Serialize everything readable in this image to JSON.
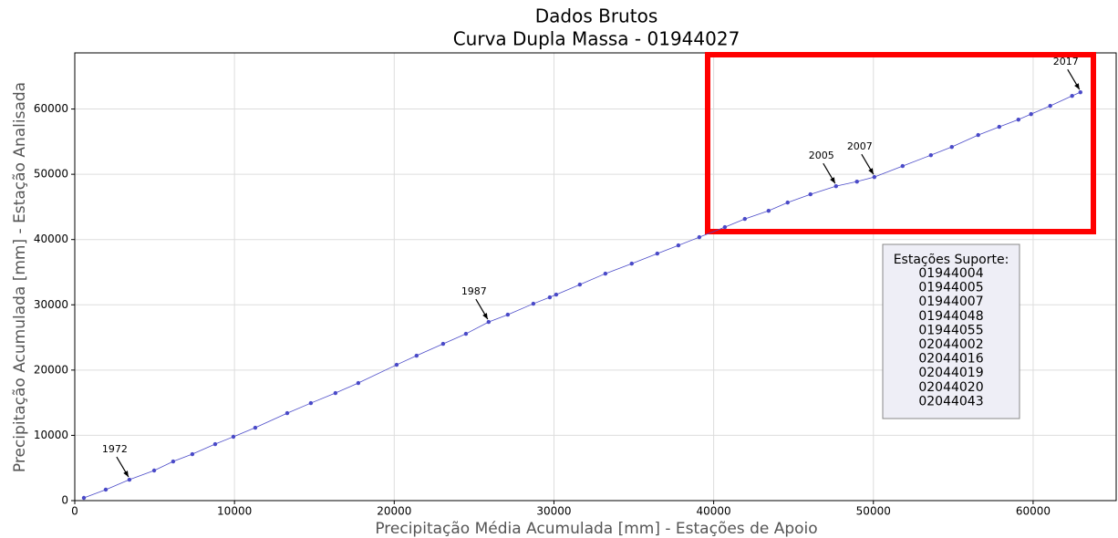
{
  "chart_data": {
    "type": "line",
    "title": "Dados Brutos",
    "subtitle": "Curva Dupla Massa - 01944027",
    "xlabel": "Precipitação Média Acumulada [mm] - Estações de Apoio",
    "ylabel": "Precipitação Acumulada [mm] - Estação Analisada",
    "x": [
      570,
      1940,
      3420,
      4970,
      6160,
      7360,
      8790,
      9930,
      11300,
      13300,
      14780,
      16320,
      17750,
      20150,
      21400,
      23060,
      24490,
      25910,
      27110,
      28710,
      29740,
      30140,
      31620,
      33220,
      34870,
      36470,
      37790,
      39100,
      40700,
      41950,
      43440,
      44630,
      46060,
      47660,
      48970,
      50060,
      51830,
      53600,
      54910,
      56560,
      57880,
      59080,
      59870,
      61070,
      62440,
      62960
    ],
    "series": [
      {
        "color": "#4a4ac8",
        "values": [
          420,
          1680,
          3210,
          4610,
          6000,
          7120,
          8660,
          9780,
          11170,
          13400,
          14940,
          16480,
          18020,
          20810,
          22210,
          24020,
          25560,
          27370,
          28490,
          30170,
          31150,
          31560,
          33100,
          34780,
          36310,
          37850,
          39110,
          40360,
          41900,
          43160,
          44410,
          45670,
          46930,
          48180,
          48880,
          49580,
          51260,
          52930,
          54190,
          56010,
          57270,
          58380,
          59220,
          60480,
          62010,
          62570
        ]
      }
    ],
    "xlim": [
      0,
      65200
    ],
    "ylim": [
      0,
      68600
    ],
    "xticks": [
      0,
      10000,
      20000,
      30000,
      40000,
      50000,
      60000
    ],
    "yticks": [
      0,
      10000,
      20000,
      30000,
      40000,
      50000,
      60000
    ],
    "grid": true,
    "annotations": [
      {
        "text": "1972",
        "x": 3420,
        "y": 3210
      },
      {
        "text": "1987",
        "x": 25910,
        "y": 27370
      },
      {
        "text": "2005",
        "x": 47660,
        "y": 48180
      },
      {
        "text": "2007",
        "x": 50060,
        "y": 49580
      },
      {
        "text": "2017",
        "x": 62960,
        "y": 62570
      }
    ],
    "text_box": {
      "title": "Estações Suporte:",
      "lines": [
        "01944004",
        "01944005",
        "01944007",
        "01944048",
        "01944055",
        "02044002",
        "02044016",
        "02044019",
        "02044020",
        "02044043"
      ]
    }
  }
}
